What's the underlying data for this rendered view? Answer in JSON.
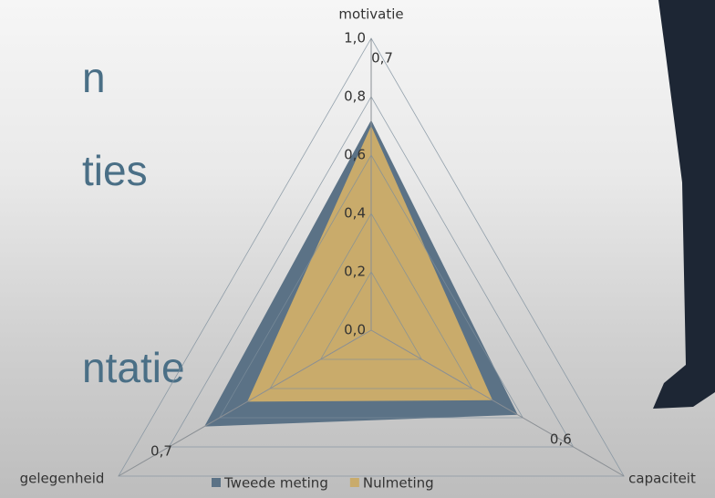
{
  "slide_text": [
    "n",
    "ties",
    "ntatie"
  ],
  "chart_data": {
    "type": "radar",
    "categories": [
      "motivatie",
      "gelegenheid",
      "capaciteit"
    ],
    "series": [
      {
        "name": "Tweede meting",
        "color": "#5b7286",
        "values": [
          0.72,
          0.58,
          0.66
        ],
        "value_labels": [
          "0,7",
          "0,6",
          "0,7"
        ]
      },
      {
        "name": "Nulmeting",
        "color": "#c9ab6b",
        "values": [
          0.7,
          0.48,
          0.49
        ]
      }
    ],
    "ylim": [
      0,
      1
    ],
    "yticks": [
      {
        "value": 0,
        "label": "0,0"
      },
      {
        "value": 0.2,
        "label": "0,2"
      },
      {
        "value": 0.4,
        "label": "0,4"
      },
      {
        "value": 0.6,
        "label": "0,6"
      },
      {
        "value": 0.8,
        "label": "0,8"
      },
      {
        "value": 1,
        "label": "1,0"
      }
    ],
    "grid": true,
    "legend": "bottom"
  }
}
